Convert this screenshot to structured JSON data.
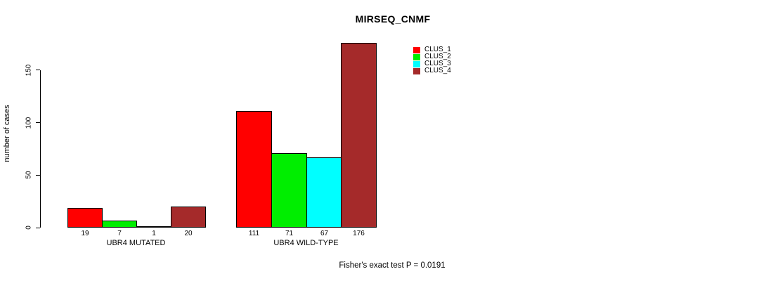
{
  "chart_data": {
    "type": "bar",
    "title": "MIRSEQ_CNMF",
    "ylabel": "number of cases",
    "xlabel": "",
    "ylim": [
      0,
      176
    ],
    "yticks": [
      0,
      50,
      100,
      150
    ],
    "grid": false,
    "legend_position": "top-right",
    "categories": [
      "UBR4 MUTATED",
      "UBR4 WILD-TYPE"
    ],
    "series": [
      {
        "name": "CLUS_1",
        "color": "#FF0000",
        "values": [
          19,
          111
        ]
      },
      {
        "name": "CLUS_2",
        "color": "#00EE00",
        "values": [
          7,
          71
        ]
      },
      {
        "name": "CLUS_3",
        "color": "#00FFFF",
        "values": [
          1,
          67
        ]
      },
      {
        "name": "CLUS_4",
        "color": "#A52A2A",
        "values": [
          20,
          176
        ]
      }
    ],
    "bar_value_labels": [
      [
        19,
        7,
        1,
        20
      ],
      [
        111,
        71,
        67,
        176
      ]
    ],
    "annotation": "Fisher's exact test P = 0.0191"
  },
  "colors": {
    "text": "#000000",
    "background": "#FFFFFF",
    "axis": "#000000"
  }
}
